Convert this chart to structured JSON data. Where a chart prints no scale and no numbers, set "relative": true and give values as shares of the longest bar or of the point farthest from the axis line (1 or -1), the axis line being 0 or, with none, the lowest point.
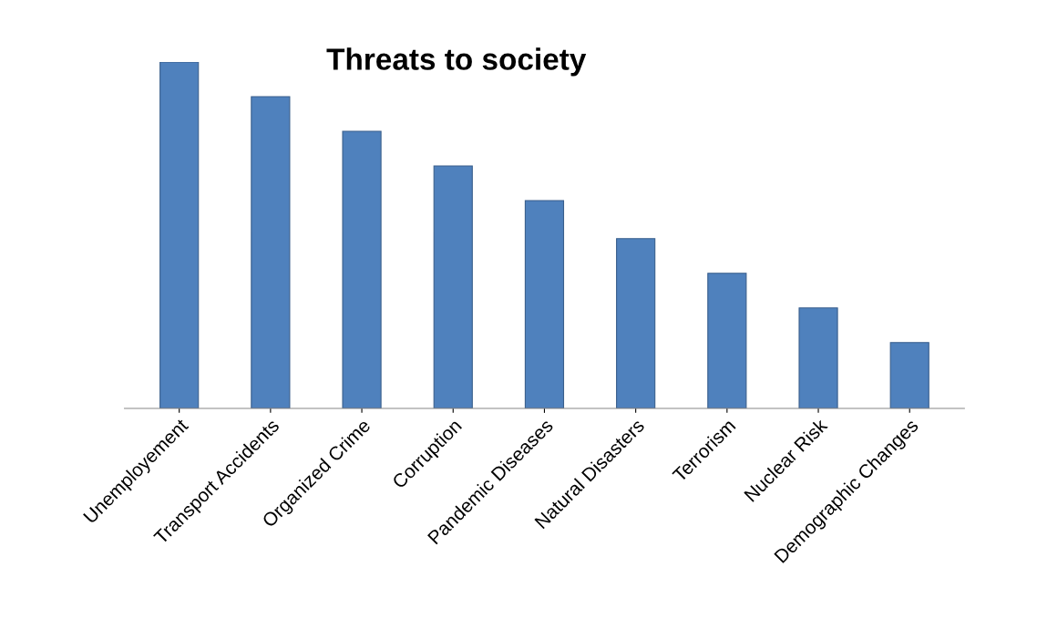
{
  "chart_data": {
    "type": "bar",
    "title": "Threats to society",
    "relative": true,
    "categories": [
      "Unemployement",
      "Transport Accidents",
      "Organized Crime",
      "Corruption",
      "Pandemic Diseases",
      "Natural Disasters",
      "Terrorism",
      "Nuclear Risk",
      "Demographic Changes"
    ],
    "values": [
      1.0,
      0.9,
      0.8,
      0.7,
      0.6,
      0.49,
      0.39,
      0.29,
      0.19
    ],
    "color": "#4f81bd",
    "grid": false,
    "legend": false
  }
}
